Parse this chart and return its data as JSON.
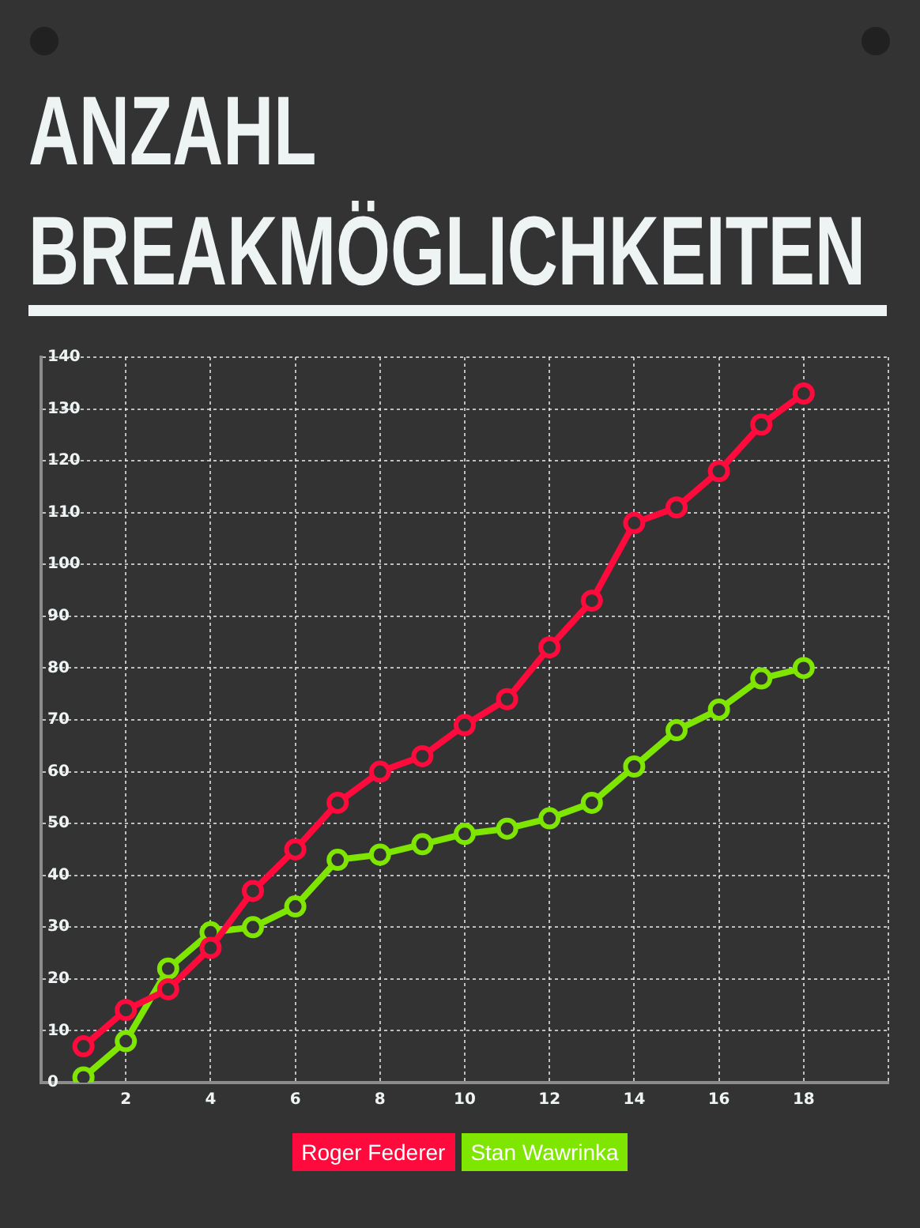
{
  "chart_data": {
    "type": "line",
    "title": "ANZAHL BREAKMÖGLICHKEITEN",
    "x": [
      1,
      2,
      3,
      4,
      5,
      6,
      7,
      8,
      9,
      10,
      11,
      12,
      13,
      14,
      15,
      16,
      17,
      18
    ],
    "xlim": [
      0,
      20
    ],
    "xticks": [
      2,
      4,
      6,
      8,
      10,
      12,
      14,
      16,
      18,
      {
        "value": 20,
        "label": null
      }
    ],
    "ylim": [
      0,
      140
    ],
    "yticks": [
      0,
      10,
      20,
      30,
      40,
      50,
      60,
      70,
      80,
      90,
      100,
      110,
      120,
      130,
      140
    ],
    "grid": true,
    "legend": "bottom",
    "marker": "circle",
    "line_style": "solid",
    "series": [
      {
        "name": "Roger Federer",
        "color": "#ff0a3c",
        "values": [
          7,
          14,
          18,
          26,
          37,
          45,
          54,
          60,
          63,
          69,
          74,
          84,
          93,
          108,
          111,
          118,
          127,
          133
        ]
      },
      {
        "name": "Stan Wawrinka",
        "color": "#7ee600",
        "values": [
          1,
          8,
          22,
          29,
          30,
          34,
          43,
          44,
          46,
          48,
          49,
          51,
          54,
          61,
          68,
          72,
          78,
          80
        ]
      }
    ]
  }
}
